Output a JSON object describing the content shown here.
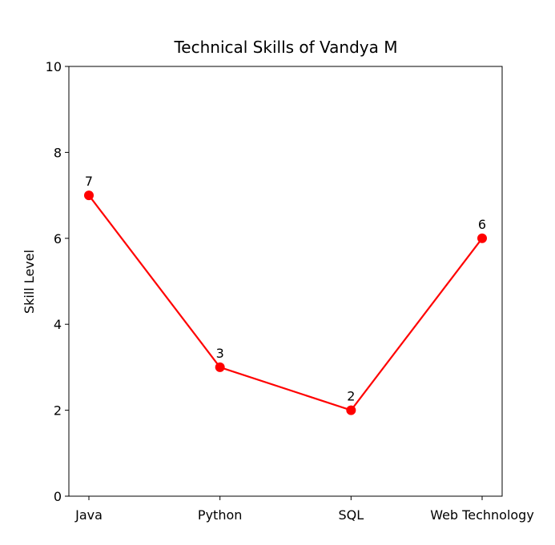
{
  "chart_data": {
    "type": "line",
    "title": "Technical Skills of Vandya M",
    "xlabel": "",
    "ylabel": "Skill Level",
    "categories": [
      "Java",
      "Python",
      "SQL",
      "Web Technology"
    ],
    "series": [
      {
        "values": [
          7,
          3,
          2,
          6
        ],
        "color": "#ff0000"
      }
    ],
    "ylim": [
      0,
      10
    ],
    "yticks": [
      0,
      2,
      4,
      6,
      8,
      10
    ],
    "grid": false,
    "marker": "circle",
    "data_labels": true
  }
}
